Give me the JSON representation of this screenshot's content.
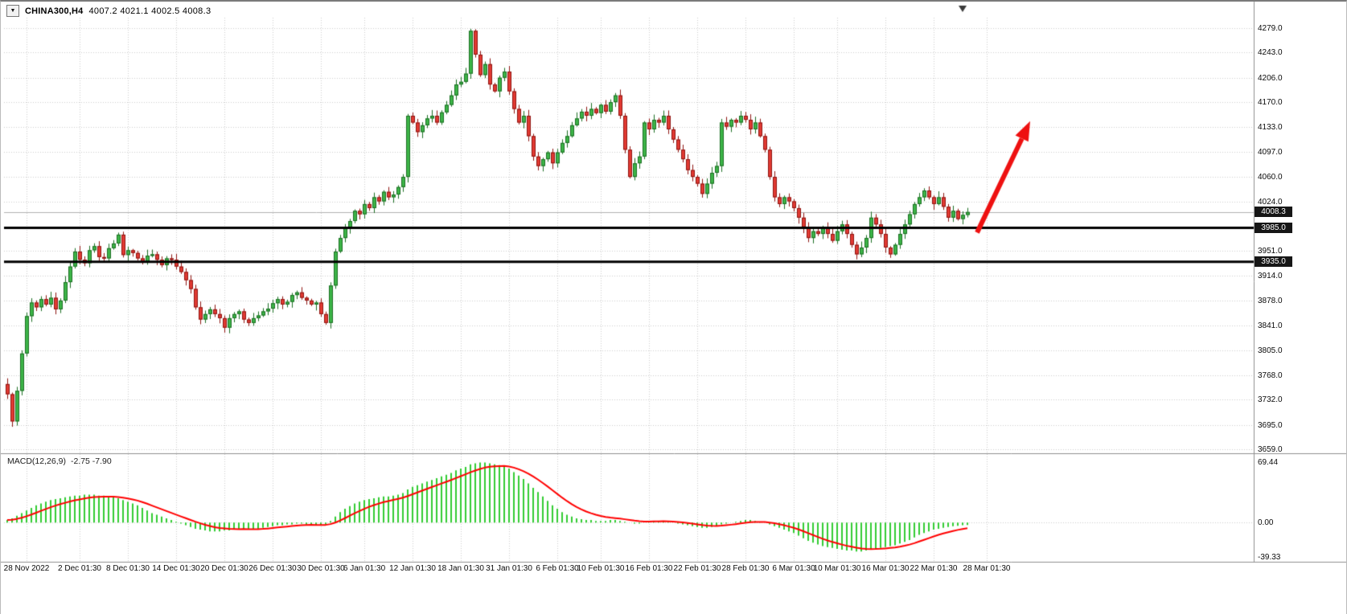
{
  "window": {
    "title_symbol": "CHINA300,H4",
    "title_ohlc": "4007.2 4021.1 4002.5 4008.3",
    "dropdown_icon": "▼"
  },
  "colors": {
    "background": "#ffffff",
    "grid": "#cdcdcd",
    "up_fill": "#3db548",
    "up_stroke": "#1b6e22",
    "down_fill": "#e23a33",
    "down_stroke": "#8e1410",
    "hline": "#000000",
    "current_price_line": "#b0b0b0",
    "separator": "#8f8f8f",
    "macd_hist": "#33cc33",
    "macd_signal": "#ff0000",
    "badge_bg": "#161616"
  },
  "chart_data": [
    {
      "type": "candlestick",
      "title": "CHINA300,H4",
      "timeframe": "H4",
      "ohlc": {
        "open": 4007.2,
        "high": 4021.1,
        "low": 4002.5,
        "close": 4008.3
      },
      "ylim": [
        3659,
        4279
      ],
      "y_ticks": [
        "4279.0",
        "4243.0",
        "4206.0",
        "4170.0",
        "4133.0",
        "4097.0",
        "4060.0",
        "4024.0",
        "3951.0",
        "3914.0",
        "3878.0",
        "3841.0",
        "3805.0",
        "3768.0",
        "3732.0",
        "3695.0",
        "3659.0"
      ],
      "current_price": 4008.3,
      "current_price_label": "4008.3",
      "hlines": [
        {
          "price": 3985.0,
          "label": "3985.0"
        },
        {
          "price": 3935.0,
          "label": "3935.0"
        }
      ],
      "x_labels": [
        {
          "label": "28 Nov 2022",
          "index": 4
        },
        {
          "label": "2 Dec 01:30",
          "index": 15
        },
        {
          "label": "8 Dec 01:30",
          "index": 25
        },
        {
          "label": "14 Dec 01:30",
          "index": 35
        },
        {
          "label": "20 Dec 01:30",
          "index": 45
        },
        {
          "label": "26 Dec 01:30",
          "index": 55
        },
        {
          "label": "30 Dec 01:30",
          "index": 65
        },
        {
          "label": "6 Jan 01:30",
          "index": 74
        },
        {
          "label": "12 Jan 01:30",
          "index": 84
        },
        {
          "label": "18 Jan 01:30",
          "index": 94
        },
        {
          "label": "31 Jan 01:30",
          "index": 104
        },
        {
          "label": "6 Feb 01:30",
          "index": 114
        },
        {
          "label": "10 Feb 01:30",
          "index": 123
        },
        {
          "label": "16 Feb 01:30",
          "index": 133
        },
        {
          "label": "22 Feb 01:30",
          "index": 143
        },
        {
          "label": "28 Feb 01:30",
          "index": 153
        },
        {
          "label": "6 Mar 01:30",
          "index": 163
        },
        {
          "label": "10 Mar 01:30",
          "index": 172
        },
        {
          "label": "16 Mar 01:30",
          "index": 182
        },
        {
          "label": "22 Mar 01:30",
          "index": 192
        },
        {
          "label": "28 Mar 01:30",
          "index": 203
        }
      ],
      "closes": [
        3740,
        3700,
        3745,
        3800,
        3855,
        3875,
        3868,
        3880,
        3872,
        3882,
        3865,
        3878,
        3905,
        3928,
        3950,
        3938,
        3933,
        3952,
        3958,
        3942,
        3940,
        3955,
        3962,
        3975,
        3945,
        3952,
        3948,
        3940,
        3935,
        3944,
        3946,
        3938,
        3930,
        3940,
        3938,
        3928,
        3920,
        3908,
        3895,
        3868,
        3850,
        3858,
        3865,
        3858,
        3852,
        3838,
        3852,
        3858,
        3862,
        3850,
        3845,
        3852,
        3856,
        3862,
        3866,
        3874,
        3880,
        3872,
        3876,
        3886,
        3890,
        3882,
        3878,
        3872,
        3875,
        3858,
        3845,
        3900,
        3950,
        3970,
        3985,
        3995,
        4010,
        4005,
        4020,
        4014,
        4030,
        4024,
        4038,
        4030,
        4034,
        4045,
        4060,
        4150,
        4140,
        4126,
        4136,
        4146,
        4150,
        4140,
        4155,
        4166,
        4180,
        4196,
        4200,
        4212,
        4275,
        4240,
        4210,
        4226,
        4196,
        4186,
        4206,
        4215,
        4186,
        4160,
        4140,
        4150,
        4120,
        4090,
        4076,
        4086,
        4096,
        4080,
        4096,
        4110,
        4120,
        4136,
        4146,
        4156,
        4150,
        4160,
        4154,
        4166,
        4156,
        4170,
        4180,
        4150,
        4100,
        4060,
        4080,
        4090,
        4140,
        4130,
        4144,
        4140,
        4150,
        4130,
        4115,
        4100,
        4086,
        4070,
        4060,
        4050,
        4035,
        4050,
        4066,
        4076,
        4140,
        4134,
        4144,
        4140,
        4150,
        4144,
        4130,
        4140,
        4120,
        4100,
        4060,
        4030,
        4020,
        4030,
        4024,
        4014,
        4000,
        3986,
        3970,
        3980,
        3976,
        3986,
        3976,
        3966,
        3980,
        3990,
        3976,
        3960,
        3946,
        3956,
        3970,
        4000,
        3990,
        3976,
        3956,
        3946,
        3960,
        3976,
        3990,
        4005,
        4020,
        4030,
        4040,
        4030,
        4020,
        4030,
        4016,
        4000,
        4010,
        3998,
        4004,
        4008.3
      ],
      "annotation_arrow": {
        "from_index": 201,
        "from_price": 3978,
        "to_index": 212,
        "to_price": 4142,
        "color": "#ee1111"
      }
    },
    {
      "type": "macd",
      "label": "MACD(12,26,9)",
      "values_text": "-2.75 -7.90",
      "main_value": -2.75,
      "signal_value": -7.9,
      "ylim": [
        -39.33,
        69.44
      ],
      "y_ticks": [
        "69.44",
        "0.00",
        "-39.33"
      ],
      "signal_period": 9,
      "histogram": [
        3,
        5,
        8,
        11,
        14,
        17,
        20,
        22,
        24,
        26,
        27,
        28,
        29,
        30,
        31,
        31,
        32,
        32,
        32,
        31,
        31,
        30,
        29,
        28,
        26,
        24,
        22,
        20,
        17,
        14,
        11,
        9,
        7,
        5,
        3,
        1,
        -1,
        -3,
        -5,
        -7,
        -8,
        -9,
        -10,
        -10,
        -10,
        -9,
        -9,
        -8,
        -8,
        -7,
        -8,
        -8,
        -7,
        -6,
        -5,
        -4,
        -3,
        -3,
        -2,
        -2,
        -1,
        -1,
        -2,
        -2,
        -3,
        -3,
        -2,
        2,
        7,
        12,
        16,
        19,
        22,
        24,
        26,
        27,
        28,
        29,
        30,
        30,
        31,
        32,
        34,
        38,
        41,
        43,
        45,
        47,
        49,
        51,
        53,
        55,
        57,
        60,
        62,
        64,
        67,
        68,
        69,
        69,
        68,
        67,
        66,
        65,
        62,
        58,
        54,
        50,
        45,
        40,
        35,
        30,
        25,
        20,
        16,
        12,
        9,
        7,
        5,
        4,
        3,
        3,
        2,
        2,
        2,
        3,
        3,
        2,
        1,
        0,
        -1,
        -1,
        0,
        1,
        2,
        2,
        2,
        1,
        0,
        -1,
        -2,
        -3,
        -4,
        -5,
        -6,
        -6,
        -5,
        -4,
        -2,
        -1,
        0,
        1,
        2,
        3,
        3,
        2,
        1,
        0,
        -2,
        -4,
        -6,
        -8,
        -10,
        -12,
        -15,
        -18,
        -21,
        -23,
        -25,
        -27,
        -28,
        -29,
        -30,
        -31,
        -32,
        -32,
        -33,
        -33,
        -32,
        -31,
        -30,
        -29,
        -28,
        -27,
        -26,
        -24,
        -22,
        -20,
        -17,
        -14,
        -12,
        -10,
        -8,
        -7,
        -6,
        -5,
        -4,
        -3.5,
        -3,
        -2.75
      ]
    }
  ]
}
